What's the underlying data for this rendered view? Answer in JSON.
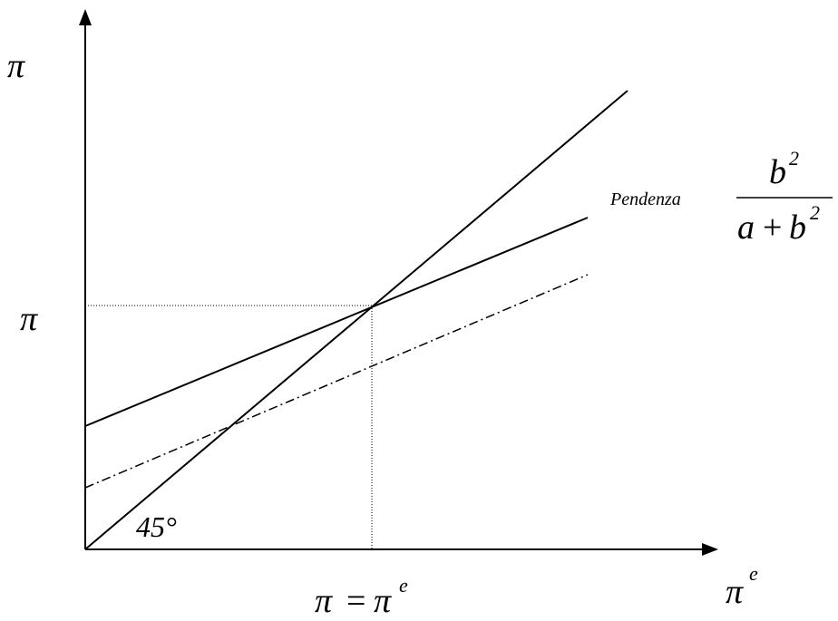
{
  "diagram": {
    "y_axis_label": "π",
    "x_axis_label_base": "π",
    "x_axis_label_sup": "e",
    "y_tick_label": "π",
    "bottom_equation_left": "π",
    "bottom_equation_eq": "=",
    "bottom_equation_right": "π",
    "bottom_equation_sup": "e",
    "angle_label": "45°",
    "slope_word": "Pendenza",
    "slope_numerator_base": "b",
    "slope_numerator_sup": "2",
    "slope_denominator_a": "a",
    "slope_denominator_plus": "+",
    "slope_denominator_b": "b",
    "slope_denominator_sup": "2"
  }
}
